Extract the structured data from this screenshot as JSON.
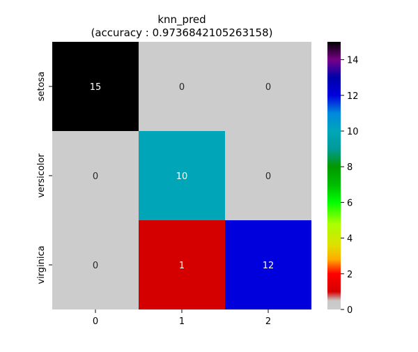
{
  "chart_data": {
    "type": "heatmap",
    "title_line1": "knn_pred",
    "title_line2": "(accuracy : 0.9736842105263158)",
    "x_tick_labels": [
      "0",
      "1",
      "2"
    ],
    "y_tick_labels": [
      "setosa",
      "versicolor",
      "virginica"
    ],
    "values": [
      [
        15,
        0,
        0
      ],
      [
        0,
        10,
        0
      ],
      [
        0,
        1,
        12
      ]
    ],
    "colormap": "nipy_spectral (zero shown as light gray)",
    "color_stops": [
      {
        "v": 0,
        "c": "#cccccc"
      },
      {
        "v": 0.5,
        "c": "#c8c8c8"
      },
      {
        "v": 1,
        "c": "#d40000"
      },
      {
        "v": 2,
        "c": "#ff0000"
      },
      {
        "v": 2.8,
        "c": "#ffaa00"
      },
      {
        "v": 3.6,
        "c": "#e0e000"
      },
      {
        "v": 4.8,
        "c": "#aaff00"
      },
      {
        "v": 6,
        "c": "#00ff00"
      },
      {
        "v": 7,
        "c": "#00bb00"
      },
      {
        "v": 8,
        "c": "#009900"
      },
      {
        "v": 9,
        "c": "#009a9a"
      },
      {
        "v": 10,
        "c": "#00a6b8"
      },
      {
        "v": 11,
        "c": "#0088dd"
      },
      {
        "v": 12,
        "c": "#0000dd"
      },
      {
        "v": 13,
        "c": "#0000aa"
      },
      {
        "v": 14,
        "c": "#770088"
      },
      {
        "v": 15,
        "c": "#000000"
      }
    ],
    "colorbar_range": [
      0,
      15
    ],
    "colorbar_ticks": [
      "0",
      "2",
      "4",
      "6",
      "8",
      "10",
      "12",
      "14"
    ],
    "annotation_color_dark_bg": "#ffffff",
    "annotation_color_light_bg": "#262626"
  }
}
